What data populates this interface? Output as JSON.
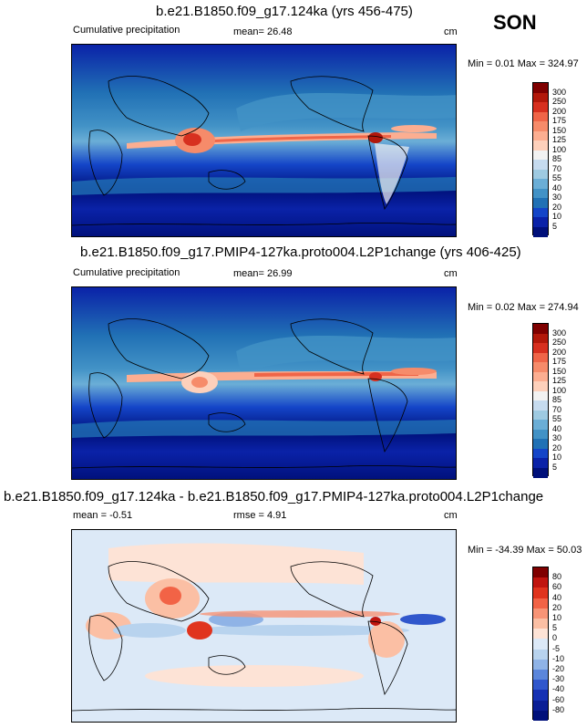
{
  "season": "SON",
  "panels": [
    {
      "title": "b.e21.B1850.f09_g17.124ka (yrs 456-475)",
      "variable": "Cumulative precipitation",
      "stat_label": "mean=",
      "stat_value": "26.48",
      "units": "cm",
      "minmax": "Min =   0.01 Max = 324.97",
      "levels": [
        "300",
        "250",
        "200",
        "175",
        "150",
        "125",
        "100",
        "85",
        "70",
        "55",
        "40",
        "30",
        "20",
        "10",
        "5"
      ],
      "colors": [
        "#7f0000",
        "#b2180a",
        "#d7301f",
        "#ef6548",
        "#f68b6a",
        "#fcae91",
        "#fdd0bb",
        "#f2f2f2",
        "#c6dbef",
        "#9ecae1",
        "#6baed6",
        "#4292c6",
        "#2171b5",
        "#1445c8",
        "#0a22a8",
        "#00107a"
      ]
    },
    {
      "title": "b.e21.B1850.f09_g17.PMIP4-127ka.proto004.L2P1change (yrs 406-425)",
      "variable": "Cumulative precipitation",
      "stat_label": "mean=",
      "stat_value": "26.99",
      "units": "cm",
      "minmax": "Min =   0.02 Max = 274.94",
      "levels": [
        "300",
        "250",
        "200",
        "175",
        "150",
        "125",
        "100",
        "85",
        "70",
        "55",
        "40",
        "30",
        "20",
        "10",
        "5"
      ],
      "colors": [
        "#7f0000",
        "#b2180a",
        "#d7301f",
        "#ef6548",
        "#f68b6a",
        "#fcae91",
        "#fdd0bb",
        "#f2f2f2",
        "#c6dbef",
        "#9ecae1",
        "#6baed6",
        "#4292c6",
        "#2171b5",
        "#1445c8",
        "#0a22a8",
        "#00107a"
      ]
    },
    {
      "title": "b.e21.B1850.f09_g17.124ka - b.e21.B1850.f09_g17.PMIP4-127ka.proto004.L2P1change",
      "stat_label": "mean =",
      "stat_value": "-0.51",
      "rmse_label": "rmse =",
      "rmse_value": "4.91",
      "units": "cm",
      "minmax": "Min = -34.39 Max =  50.03",
      "levels": [
        "80",
        "60",
        "40",
        "20",
        "10",
        "5",
        "0",
        "-5",
        "-10",
        "-20",
        "-30",
        "-40",
        "-60",
        "-80"
      ],
      "colors": [
        "#7f0000",
        "#c0150f",
        "#e0341e",
        "#f26346",
        "#f89476",
        "#fbbfa4",
        "#fde3d6",
        "#dce9f7",
        "#b8d3ee",
        "#8fb3e6",
        "#5b86db",
        "#3057cc",
        "#1631b3",
        "#0a1e95",
        "#00107a"
      ]
    }
  ],
  "chart_data": [
    {
      "type": "heatmap",
      "title": "b.e21.B1850.f09_g17.124ka (yrs 456-475)",
      "subtitle": "Cumulative precipitation",
      "units": "cm",
      "mean": 26.48,
      "min": 0.01,
      "max": 324.97,
      "colorbar_levels": [
        5,
        10,
        20,
        30,
        40,
        55,
        70,
        85,
        100,
        125,
        150,
        175,
        200,
        250,
        300
      ],
      "features": "ITCZ maximum along the equatorial Pacific; heavy precipitation over the Maritime Continent; dry subtropical oceans"
    },
    {
      "type": "heatmap",
      "title": "b.e21.B1850.f09_g17.PMIP4-127ka.proto004.L2P1change (yrs 406-425)",
      "subtitle": "Cumulative precipitation",
      "units": "cm",
      "mean": 26.99,
      "min": 0.02,
      "max": 274.94,
      "colorbar_levels": [
        5,
        10,
        20,
        30,
        40,
        55,
        70,
        85,
        100,
        125,
        150,
        175,
        200,
        250,
        300
      ]
    },
    {
      "type": "heatmap",
      "title": "b.e21.B1850.f09_g17.124ka - b.e21.B1850.f09_g17.PMIP4-127ka.proto004.L2P1change",
      "units": "cm",
      "mean": -0.51,
      "rmse": 4.91,
      "min": -34.39,
      "max": 50.03,
      "colorbar_levels": [
        -80,
        -60,
        -40,
        -30,
        -20,
        -10,
        -5,
        0,
        5,
        10,
        20,
        40,
        60,
        80
      ]
    }
  ]
}
